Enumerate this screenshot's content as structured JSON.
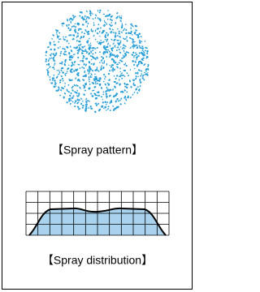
{
  "pattern_label": "【Spray pattern】",
  "distribution_label": "【Spray distribution】"
}
